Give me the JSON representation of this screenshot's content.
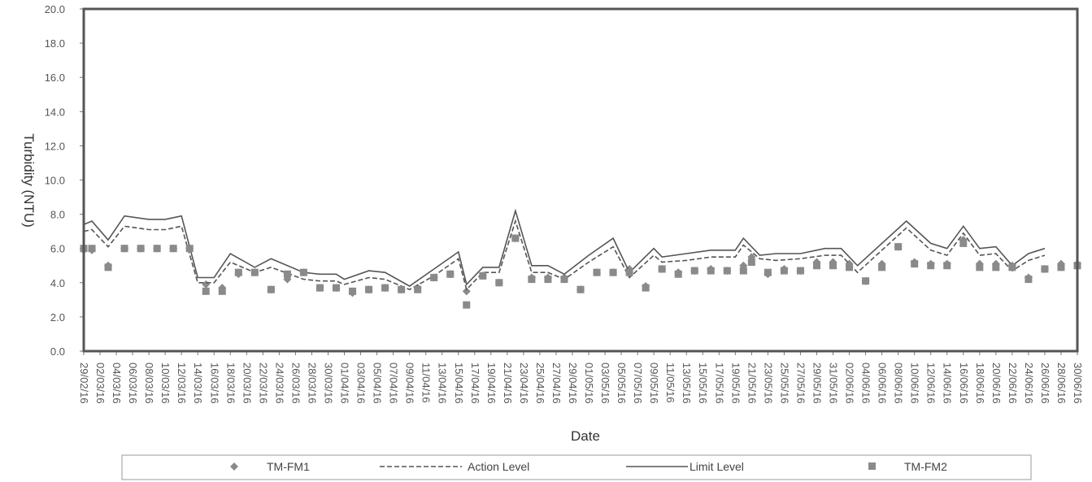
{
  "chart_data": {
    "type": "line",
    "title": "",
    "xlabel": "Date",
    "ylabel": "Turbidity (NTU)",
    "ylim": [
      0,
      20
    ],
    "yticks": [
      "0.0",
      "2.0",
      "4.0",
      "6.0",
      "8.0",
      "10.0",
      "12.0",
      "14.0",
      "16.0",
      "18.0",
      "20.0"
    ],
    "x_ticks": [
      "29/02/16",
      "02/03/16",
      "04/03/16",
      "06/03/16",
      "08/03/16",
      "10/03/16",
      "12/03/16",
      "14/03/16",
      "16/03/16",
      "18/03/16",
      "20/03/16",
      "22/03/16",
      "24/03/16",
      "26/03/16",
      "28/03/16",
      "30/03/16",
      "01/04/16",
      "03/04/16",
      "05/04/16",
      "07/04/16",
      "09/04/16",
      "11/04/16",
      "13/04/16",
      "15/04/16",
      "17/04/16",
      "19/04/16",
      "21/04/16",
      "23/04/16",
      "25/04/16",
      "27/04/16",
      "29/04/16",
      "01/05/16",
      "03/05/16",
      "05/05/16",
      "07/05/16",
      "09/05/16",
      "11/05/16",
      "13/05/16",
      "15/05/16",
      "17/05/16",
      "19/05/16",
      "21/05/16",
      "23/05/16",
      "25/05/16",
      "27/05/16",
      "29/05/16",
      "31/05/16",
      "02/06/16",
      "04/06/16",
      "06/06/16",
      "08/06/16",
      "10/06/16",
      "12/06/16",
      "14/06/16",
      "16/06/16",
      "18/06/16",
      "20/06/16",
      "22/06/16",
      "24/06/16",
      "26/06/16",
      "28/06/16",
      "30/06/16"
    ],
    "grid": false,
    "legend_position": "bottom",
    "series": [
      {
        "name": "TM-FM1",
        "marker": "diamond",
        "color": "#8a8a8a",
        "points": [
          [
            "29/02/16",
            5.9
          ],
          [
            "01/03/16",
            5.9
          ],
          [
            "03/03/16",
            5.0
          ],
          [
            "05/03/16",
            6.0
          ],
          [
            "07/03/16",
            6.0
          ],
          [
            "09/03/16",
            6.0
          ],
          [
            "11/03/16",
            6.0
          ],
          [
            "13/03/16",
            6.0
          ],
          [
            "15/03/16",
            3.9
          ],
          [
            "17/03/16",
            3.7
          ],
          [
            "19/03/16",
            4.5
          ],
          [
            "21/03/16",
            4.6
          ],
          [
            "23/03/16",
            3.6
          ],
          [
            "25/03/16",
            4.2
          ],
          [
            "27/03/16",
            4.6
          ],
          [
            "29/03/16",
            3.7
          ],
          [
            "31/03/16",
            3.7
          ],
          [
            "02/04/16",
            3.4
          ],
          [
            "04/04/16",
            3.6
          ],
          [
            "06/04/16",
            3.7
          ],
          [
            "08/04/16",
            3.6
          ],
          [
            "10/04/16",
            3.7
          ],
          [
            "12/04/16",
            4.3
          ],
          [
            "14/04/16",
            4.5
          ],
          [
            "16/04/16",
            3.5
          ],
          [
            "18/04/16",
            4.4
          ],
          [
            "20/04/16",
            4.0
          ],
          [
            "22/04/16",
            6.6
          ],
          [
            "24/04/16",
            4.3
          ],
          [
            "26/04/16",
            4.3
          ],
          [
            "28/04/16",
            4.3
          ],
          [
            "30/04/16",
            3.6
          ],
          [
            "02/05/16",
            4.6
          ],
          [
            "04/05/16",
            4.6
          ],
          [
            "06/05/16",
            4.8
          ],
          [
            "08/05/16",
            3.8
          ],
          [
            "10/05/16",
            4.8
          ],
          [
            "12/05/16",
            4.6
          ],
          [
            "14/05/16",
            4.7
          ],
          [
            "16/05/16",
            4.8
          ],
          [
            "18/05/16",
            4.7
          ],
          [
            "20/05/16",
            5.0
          ],
          [
            "21/05/16",
            5.5
          ],
          [
            "23/05/16",
            4.5
          ],
          [
            "25/05/16",
            4.8
          ],
          [
            "27/05/16",
            4.7
          ],
          [
            "29/05/16",
            5.2
          ],
          [
            "31/05/16",
            5.2
          ],
          [
            "02/06/16",
            5.1
          ],
          [
            "04/06/16",
            4.1
          ],
          [
            "06/06/16",
            5.1
          ],
          [
            "08/06/16",
            6.1
          ],
          [
            "10/06/16",
            5.2
          ],
          [
            "12/06/16",
            5.1
          ],
          [
            "14/06/16",
            5.1
          ],
          [
            "16/06/16",
            6.5
          ],
          [
            "18/06/16",
            5.1
          ],
          [
            "20/06/16",
            5.1
          ],
          [
            "22/06/16",
            5.0
          ],
          [
            "24/06/16",
            4.3
          ],
          [
            "26/06/16",
            4.8
          ],
          [
            "28/06/16",
            5.1
          ],
          [
            "30/06/16",
            5.1
          ]
        ]
      },
      {
        "name": "Action Level",
        "style": "dashed",
        "color": "#555555",
        "points": [
          [
            "29/02/16",
            7.0
          ],
          [
            "01/03/16",
            7.1
          ],
          [
            "03/03/16",
            6.1
          ],
          [
            "05/03/16",
            7.3
          ],
          [
            "08/03/16",
            7.1
          ],
          [
            "10/03/16",
            7.1
          ],
          [
            "12/03/16",
            7.3
          ],
          [
            "14/03/16",
            4.0
          ],
          [
            "16/03/16",
            4.0
          ],
          [
            "18/03/16",
            5.2
          ],
          [
            "21/03/16",
            4.6
          ],
          [
            "23/03/16",
            4.9
          ],
          [
            "27/03/16",
            4.2
          ],
          [
            "29/03/16",
            4.1
          ],
          [
            "31/03/16",
            4.1
          ],
          [
            "01/04/16",
            3.9
          ],
          [
            "04/04/16",
            4.3
          ],
          [
            "06/04/16",
            4.2
          ],
          [
            "09/04/16",
            3.6
          ],
          [
            "12/04/16",
            4.4
          ],
          [
            "15/04/16",
            5.4
          ],
          [
            "16/04/16",
            3.6
          ],
          [
            "18/04/16",
            4.6
          ],
          [
            "20/04/16",
            4.6
          ],
          [
            "22/04/16",
            7.6
          ],
          [
            "24/04/16",
            4.6
          ],
          [
            "26/04/16",
            4.6
          ],
          [
            "28/04/16",
            4.2
          ],
          [
            "01/05/16",
            5.2
          ],
          [
            "04/05/16",
            6.1
          ],
          [
            "06/05/16",
            4.3
          ],
          [
            "09/05/16",
            5.6
          ],
          [
            "10/05/16",
            5.2
          ],
          [
            "13/05/16",
            5.3
          ],
          [
            "16/05/16",
            5.5
          ],
          [
            "19/05/16",
            5.5
          ],
          [
            "20/05/16",
            6.2
          ],
          [
            "22/05/16",
            5.4
          ],
          [
            "24/05/16",
            5.3
          ],
          [
            "27/05/16",
            5.4
          ],
          [
            "30/05/16",
            5.6
          ],
          [
            "01/06/16",
            5.6
          ],
          [
            "03/06/16",
            4.6
          ],
          [
            "09/06/16",
            7.2
          ],
          [
            "12/06/16",
            5.9
          ],
          [
            "14/06/16",
            5.6
          ],
          [
            "16/06/16",
            6.9
          ],
          [
            "18/06/16",
            5.6
          ],
          [
            "20/06/16",
            5.7
          ],
          [
            "22/06/16",
            4.7
          ],
          [
            "24/06/16",
            5.3
          ],
          [
            "26/06/16",
            5.6
          ]
        ]
      },
      {
        "name": "Limit Level",
        "style": "solid",
        "color": "#555555",
        "points": [
          [
            "29/02/16",
            7.4
          ],
          [
            "01/03/16",
            7.6
          ],
          [
            "03/03/16",
            6.5
          ],
          [
            "05/03/16",
            7.9
          ],
          [
            "08/03/16",
            7.7
          ],
          [
            "10/03/16",
            7.7
          ],
          [
            "12/03/16",
            7.9
          ],
          [
            "14/03/16",
            4.3
          ],
          [
            "16/03/16",
            4.3
          ],
          [
            "18/03/16",
            5.7
          ],
          [
            "21/03/16",
            4.9
          ],
          [
            "23/03/16",
            5.4
          ],
          [
            "27/03/16",
            4.6
          ],
          [
            "29/03/16",
            4.5
          ],
          [
            "31/03/16",
            4.5
          ],
          [
            "01/04/16",
            4.2
          ],
          [
            "04/04/16",
            4.7
          ],
          [
            "06/04/16",
            4.6
          ],
          [
            "09/04/16",
            3.8
          ],
          [
            "12/04/16",
            4.8
          ],
          [
            "15/04/16",
            5.8
          ],
          [
            "16/04/16",
            3.9
          ],
          [
            "18/04/16",
            4.9
          ],
          [
            "20/04/16",
            4.9
          ],
          [
            "22/04/16",
            8.2
          ],
          [
            "24/04/16",
            5.0
          ],
          [
            "26/04/16",
            5.0
          ],
          [
            "28/04/16",
            4.5
          ],
          [
            "01/05/16",
            5.6
          ],
          [
            "04/05/16",
            6.6
          ],
          [
            "06/05/16",
            4.6
          ],
          [
            "09/05/16",
            6.0
          ],
          [
            "10/05/16",
            5.5
          ],
          [
            "13/05/16",
            5.7
          ],
          [
            "16/05/16",
            5.9
          ],
          [
            "19/05/16",
            5.9
          ],
          [
            "20/05/16",
            6.6
          ],
          [
            "22/05/16",
            5.6
          ],
          [
            "24/05/16",
            5.7
          ],
          [
            "27/05/16",
            5.7
          ],
          [
            "30/05/16",
            6.0
          ],
          [
            "01/06/16",
            6.0
          ],
          [
            "03/06/16",
            5.0
          ],
          [
            "09/06/16",
            7.6
          ],
          [
            "12/06/16",
            6.3
          ],
          [
            "14/06/16",
            6.0
          ],
          [
            "16/06/16",
            7.3
          ],
          [
            "18/06/16",
            6.0
          ],
          [
            "20/06/16",
            6.1
          ],
          [
            "22/06/16",
            5.0
          ],
          [
            "24/06/16",
            5.7
          ],
          [
            "26/06/16",
            6.0
          ]
        ]
      },
      {
        "name": "TM-FM2",
        "marker": "square",
        "color": "#8a8a8a",
        "points": [
          [
            "29/02/16",
            6.0
          ],
          [
            "01/03/16",
            6.0
          ],
          [
            "03/03/16",
            4.9
          ],
          [
            "05/03/16",
            6.0
          ],
          [
            "07/03/16",
            6.0
          ],
          [
            "09/03/16",
            6.0
          ],
          [
            "11/03/16",
            6.0
          ],
          [
            "13/03/16",
            6.0
          ],
          [
            "15/03/16",
            3.5
          ],
          [
            "17/03/16",
            3.5
          ],
          [
            "19/03/16",
            4.6
          ],
          [
            "21/03/16",
            4.6
          ],
          [
            "23/03/16",
            3.6
          ],
          [
            "25/03/16",
            4.5
          ],
          [
            "27/03/16",
            4.6
          ],
          [
            "29/03/16",
            3.7
          ],
          [
            "31/03/16",
            3.7
          ],
          [
            "02/04/16",
            3.5
          ],
          [
            "04/04/16",
            3.6
          ],
          [
            "06/04/16",
            3.7
          ],
          [
            "08/04/16",
            3.6
          ],
          [
            "10/04/16",
            3.6
          ],
          [
            "12/04/16",
            4.3
          ],
          [
            "14/04/16",
            4.5
          ],
          [
            "16/04/16",
            2.7
          ],
          [
            "18/04/16",
            4.4
          ],
          [
            "20/04/16",
            4.0
          ],
          [
            "22/04/16",
            6.6
          ],
          [
            "24/04/16",
            4.2
          ],
          [
            "26/04/16",
            4.2
          ],
          [
            "28/04/16",
            4.2
          ],
          [
            "30/04/16",
            3.6
          ],
          [
            "02/05/16",
            4.6
          ],
          [
            "04/05/16",
            4.6
          ],
          [
            "06/05/16",
            4.6
          ],
          [
            "08/05/16",
            3.7
          ],
          [
            "10/05/16",
            4.8
          ],
          [
            "12/05/16",
            4.5
          ],
          [
            "14/05/16",
            4.7
          ],
          [
            "16/05/16",
            4.7
          ],
          [
            "18/05/16",
            4.7
          ],
          [
            "20/05/16",
            4.7
          ],
          [
            "21/05/16",
            5.2
          ],
          [
            "23/05/16",
            4.6
          ],
          [
            "25/05/16",
            4.7
          ],
          [
            "27/05/16",
            4.7
          ],
          [
            "29/05/16",
            5.0
          ],
          [
            "31/05/16",
            5.0
          ],
          [
            "02/06/16",
            4.9
          ],
          [
            "04/06/16",
            4.1
          ],
          [
            "06/06/16",
            4.9
          ],
          [
            "08/06/16",
            6.1
          ],
          [
            "10/06/16",
            5.1
          ],
          [
            "12/06/16",
            5.0
          ],
          [
            "14/06/16",
            5.0
          ],
          [
            "16/06/16",
            6.3
          ],
          [
            "18/06/16",
            4.9
          ],
          [
            "20/06/16",
            4.9
          ],
          [
            "22/06/16",
            4.9
          ],
          [
            "24/06/16",
            4.2
          ],
          [
            "26/06/16",
            4.8
          ],
          [
            "28/06/16",
            4.9
          ],
          [
            "30/06/16",
            5.0
          ]
        ]
      }
    ]
  }
}
